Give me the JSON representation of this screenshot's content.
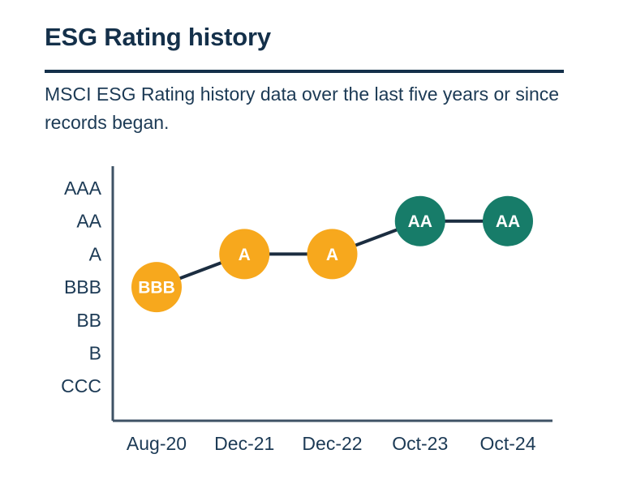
{
  "page": {
    "title": "ESG Rating history",
    "subtitle": "MSCI ESG Rating history data over the last five years or since records began."
  },
  "colors": {
    "title_navy": "#14304a",
    "text_navy": "#1c3a55",
    "axis_line": "#3e5265",
    "connector_line": "#1b2d40",
    "point_yellow": "#f7a81d",
    "point_teal": "#177c69",
    "point_label": "#ffffff"
  },
  "chart_data": {
    "type": "line",
    "title": "ESG Rating history",
    "x": [
      "Aug-20",
      "Dec-21",
      "Dec-22",
      "Oct-23",
      "Oct-24"
    ],
    "values": [
      "BBB",
      "A",
      "A",
      "AA",
      "AA"
    ],
    "y_scale_top_to_bottom": [
      "AAA",
      "AA",
      "A",
      "BBB",
      "BB",
      "B",
      "CCC"
    ],
    "series": [
      {
        "name": "MSCI ESG Rating",
        "points": [
          {
            "x": "Aug-20",
            "rating": "BBB",
            "color": "#f7a81d"
          },
          {
            "x": "Dec-21",
            "rating": "A",
            "color": "#f7a81d"
          },
          {
            "x": "Dec-22",
            "rating": "A",
            "color": "#f7a81d"
          },
          {
            "x": "Oct-23",
            "rating": "AA",
            "color": "#177c69"
          },
          {
            "x": "Oct-24",
            "rating": "AA",
            "color": "#177c69"
          }
        ]
      }
    ],
    "xlabel": "",
    "ylabel": "",
    "grid": "off",
    "legend": "none"
  }
}
